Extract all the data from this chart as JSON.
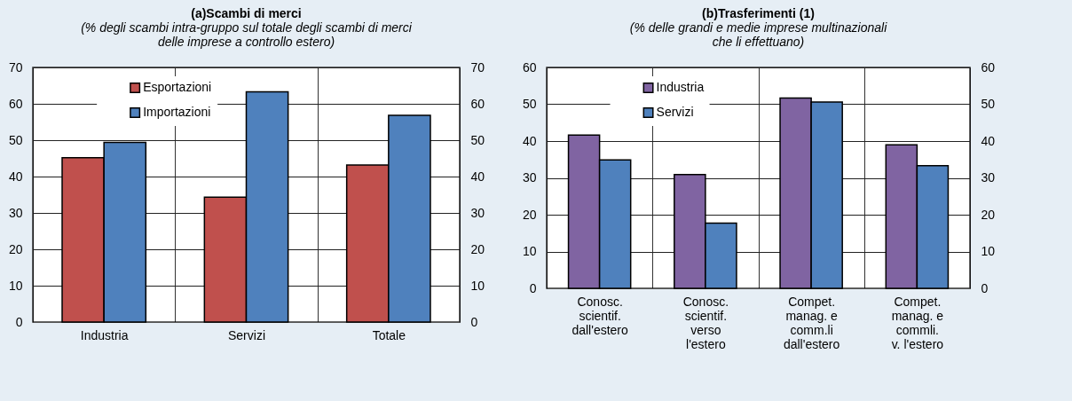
{
  "chart_data": [
    {
      "type": "bar",
      "title": "(a)Scambi di merci",
      "subtitle": "(% degli scambi intra-gruppo sul totale  degli scambi di merci\ndelle imprese a controllo estero)",
      "categories": [
        "Industria",
        "Servizi",
        "Totale"
      ],
      "series": [
        {
          "name": "Esportazioni",
          "color": "#c0504d",
          "values": [
            45.2,
            34.3,
            43.2
          ]
        },
        {
          "name": "Importazioni",
          "color": "#4f81bd",
          "values": [
            49.4,
            63.3,
            56.8
          ]
        }
      ],
      "ylim": [
        0,
        70
      ],
      "yticks": [
        0,
        10,
        20,
        30,
        40,
        50,
        60,
        70
      ],
      "y2lim": [
        0,
        70
      ],
      "y2ticks": [
        0,
        10,
        20,
        30,
        40,
        50,
        60,
        70
      ],
      "grid": true,
      "legend": "top left"
    },
    {
      "type": "bar",
      "title": "(b)Trasferimenti (1)",
      "subtitle": "(% delle grandi e medie imprese multinazionali\nche li effettuano)",
      "categories": [
        "Conosc.\nscientif.\ndall'estero",
        "Conosc.\nscientif.\nverso\nl'estero",
        "Compet.\nmanag. e\ncomm.li\ndall'estero",
        "Compet.\nmanag. e\ncommli.\nv. l'estero"
      ],
      "series": [
        {
          "name": "Industria",
          "color": "#8064a2",
          "values": [
            41.6,
            30.9,
            51.7,
            39.0
          ]
        },
        {
          "name": "Servizi",
          "color": "#4f81bd",
          "values": [
            34.9,
            17.7,
            50.6,
            33.3
          ]
        }
      ],
      "ylim": [
        0,
        60
      ],
      "yticks": [
        0,
        10,
        20,
        30,
        40,
        50,
        60
      ],
      "y2lim": [
        0,
        60
      ],
      "y2ticks": [
        0,
        10,
        20,
        30,
        40,
        50,
        60
      ],
      "grid": true,
      "legend": "top left"
    }
  ]
}
